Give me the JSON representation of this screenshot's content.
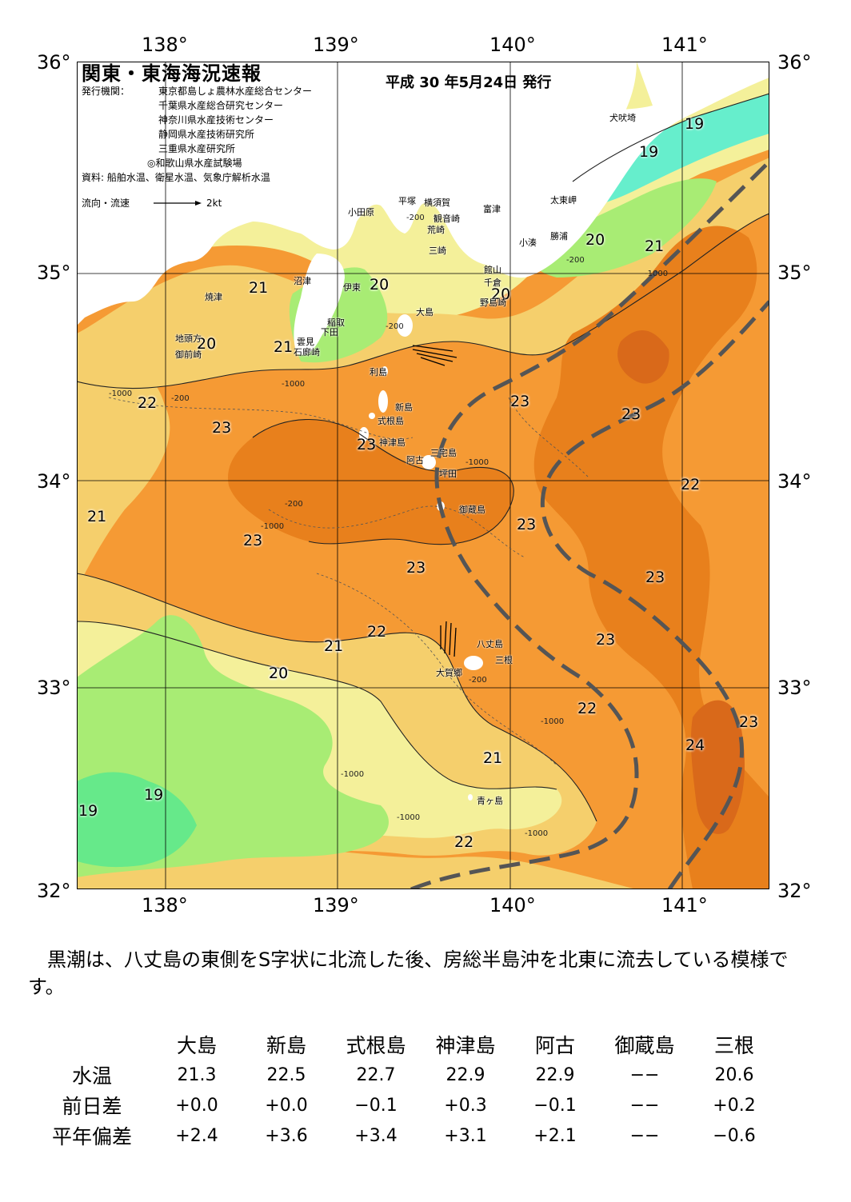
{
  "map": {
    "title": "関東・東海海況速報",
    "issue_date": "平成 30 年5月24日 発行",
    "issuer_label": "発行機関：",
    "issuers": [
      "東京都島しょ農林水産総合センター",
      "千葉県水産総合研究センター",
      "神奈川県水産技術センター",
      "静岡県水産技術研究所",
      "三重県水産研究所",
      "◎和歌山県水産試験場"
    ],
    "source": "資料: 船舶水温、衛星水温、気象庁解析水温",
    "legend_flow": "流向・流速",
    "legend_scale": "2kt",
    "lon_labels": [
      "138°",
      "139°",
      "140°",
      "141°"
    ],
    "lat_labels": [
      "36°",
      "35°",
      "34°",
      "33°",
      "32°"
    ],
    "isotherm_labels": [
      "19",
      "19",
      "20",
      "21",
      "20",
      "21",
      "20",
      "21",
      "20",
      "21",
      "20",
      "22",
      "23",
      "23",
      "23",
      "23",
      "22",
      "21",
      "23",
      "23",
      "23",
      "23",
      "22",
      "21",
      "23",
      "22",
      "20",
      "21",
      "24",
      "23",
      "22",
      "21",
      "19",
      "19"
    ],
    "depth_labels": [
      "-200",
      "-1000",
      "-200",
      "-1000",
      "-200",
      "-1000",
      "-200",
      "-1000",
      "-200",
      "-1000",
      "-200",
      "-1000",
      "-1000",
      "-1000",
      "-1000"
    ],
    "places": [
      "犬吠埼",
      "太東岬",
      "勝浦",
      "小湊",
      "富津",
      "横須賀",
      "観音崎",
      "平塚",
      "荒崎",
      "三崎",
      "小田原",
      "館山",
      "千倉",
      "野島崎",
      "沼津",
      "伊東",
      "焼津",
      "稲取",
      "下田",
      "雲見",
      "石廊崎",
      "地頭方",
      "御前崎",
      "大島",
      "利島",
      "新島",
      "式根島",
      "神津島",
      "阿古",
      "三宅島",
      "坪田",
      "御蔵島",
      "八丈島",
      "三根",
      "大賀郷",
      "青ヶ島"
    ],
    "colors": {
      "c19": "#66e98a",
      "c20": "#a8ec74",
      "c21": "#f4f09a",
      "c22": "#f5cf6c",
      "c23": "#f59a34",
      "c24": "#e8801c",
      "c24b": "#d9691a",
      "kuroshio_axis": "#555555",
      "coastal_water": "#66eecc",
      "land": "#ffffff"
    }
  },
  "summary": "黒潮は、八丈島の東側をS字状に北流した後、房総半島沖を北東に流去している模様です。",
  "table": {
    "headers": [
      "大島",
      "新島",
      "式根島",
      "神津島",
      "阿古",
      "御蔵島",
      "三根"
    ],
    "rows": [
      {
        "label": "水温",
        "values": [
          "21.3",
          "22.5",
          "22.7",
          "22.9",
          "22.9",
          "−−",
          "20.6"
        ]
      },
      {
        "label": "前日差",
        "values": [
          "+0.0",
          "+0.0",
          "−0.1",
          "+0.3",
          "−0.1",
          "−−",
          "+0.2"
        ]
      },
      {
        "label": "平年偏差",
        "values": [
          "+2.4",
          "+3.6",
          "+3.4",
          "+3.1",
          "+2.1",
          "−−",
          "−0.6"
        ]
      }
    ]
  }
}
